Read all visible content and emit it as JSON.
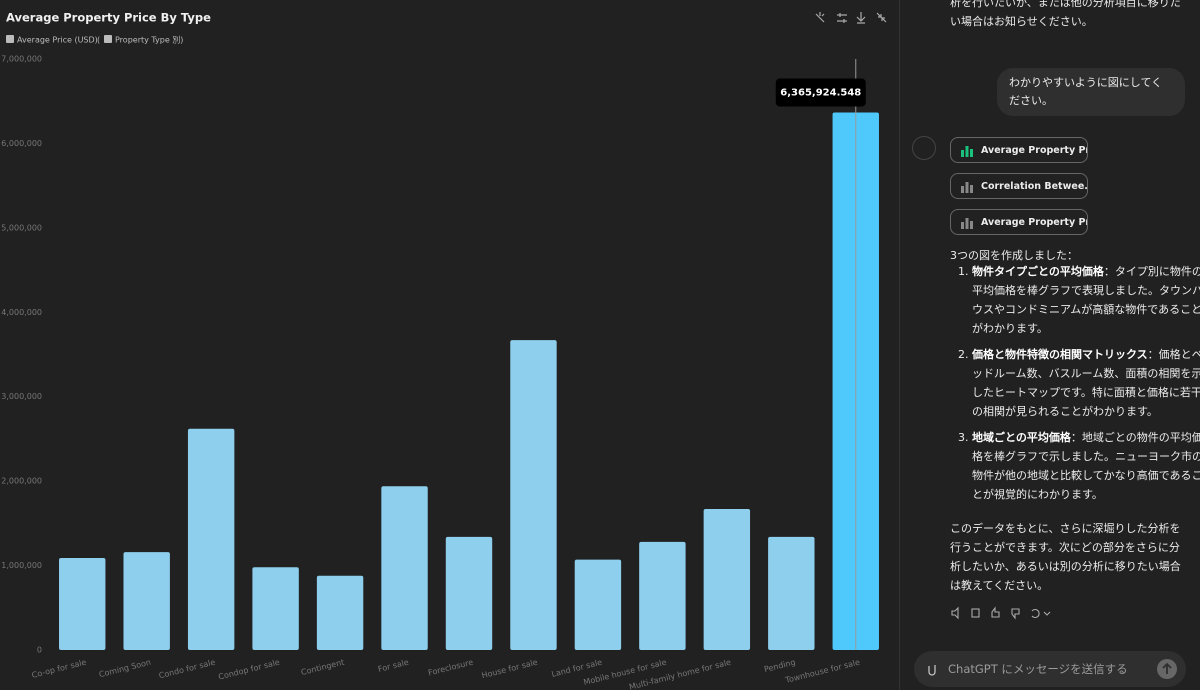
{
  "chart_data": {
    "type": "bar",
    "title": "Average Property Price By Type",
    "subtitle_parts": [
      "Average Price (USD)",
      "(",
      "Property Type 別)"
    ],
    "categories": [
      "Co-op for sale",
      "Coming Soon",
      "Condo for sale",
      "Condop for sale",
      "Contingent",
      "For sale",
      "Foreclosure",
      "House for sale",
      "Land for sale",
      "Mobile house for sale",
      "Multi-family home for sale",
      "Pending",
      "Townhouse for sale"
    ],
    "values": [
      1090000,
      1160000,
      2620000,
      980000,
      880000,
      1940000,
      1340000,
      3670000,
      1070000,
      1280000,
      1670000,
      1340000,
      6365924.548
    ],
    "value_labels": [
      null,
      null,
      null,
      null,
      null,
      null,
      null,
      null,
      null,
      null,
      null,
      null,
      "6,365,924.548"
    ],
    "color": "#8ecfed",
    "highlight_color": "#4fc8fb",
    "ylim": [
      0,
      7000000
    ],
    "yticks": [
      0,
      {
        "value": 1000000,
        "label": "1,000,000"
      },
      {
        "value": 2000000,
        "label": "2,000,000"
      },
      {
        "value": 3000000,
        "label": "3,000,000"
      },
      {
        "value": 4000000,
        "label": "4,000,000"
      },
      {
        "value": 5000000,
        "label": "5,000,000"
      },
      {
        "value": 6000000,
        "label": "6,000,000"
      },
      {
        "value": 7000000,
        "label": "7,000,000"
      }
    ],
    "grid": false
  },
  "chat": {
    "previous_tail": "析を行いたいか、または他の分析項目に移りたい場合はお知らせください。",
    "user_message": "わかりやすいように図にしてください。",
    "chart_buttons": [
      "Average Property Pr...",
      "Correlation Betwee...",
      "Average Property Pr..."
    ],
    "intro": "3つの図を作成しました：",
    "items": [
      {
        "title": "物件タイプごとの平均価格",
        "text": "：タイプ別に物件の平均価格を棒グラフで表現しました。タウンハウスやコンドミニアムが高額な物件であることがわかります。"
      },
      {
        "title": "価格と物件特徴の相関マトリックス",
        "text": "：価格とベッドルーム数、バスルーム数、面積の相関を示したヒートマップです。特に面積と価格に若干の相関が見られることがわかります。"
      },
      {
        "title": "地域ごとの平均価格",
        "text": "：地域ごとの物件の平均価格を棒グラフで示しました。ニューヨーク市の物件が他の地域と比較してかなり高価であることが視覚的にわかります。"
      }
    ],
    "closing": "このデータをもとに、さらに深堀りした分析を行うことができます。次にどの部分をさらに分析したいか、あるいは別の分析に移りたい場合は教えてください。",
    "input_placeholder": "ChatGPT にメッセージを送信する"
  }
}
